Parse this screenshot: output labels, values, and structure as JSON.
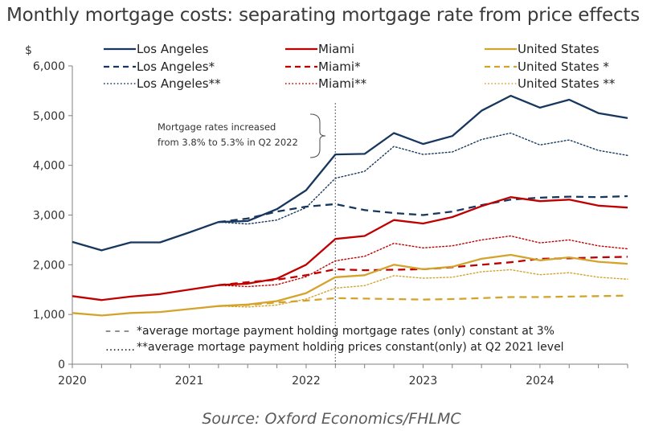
{
  "chart_data": {
    "type": "line",
    "title": "Monthly mortgage costs: separating mortgage rate from price effects",
    "ylabel": "$",
    "ylim": [
      0,
      6000
    ],
    "yticks": [
      "0",
      "1,000",
      "2,000",
      "3,000",
      "4,000",
      "5,000",
      "6,000"
    ],
    "xlim": [
      2020,
      2024.75
    ],
    "xticks": [
      "2020",
      "2021",
      "2022",
      "2023",
      "2024"
    ],
    "x": [
      2020.0,
      2020.25,
      2020.5,
      2020.75,
      2021.0,
      2021.25,
      2021.5,
      2021.75,
      2022.0,
      2022.25,
      2022.5,
      2022.75,
      2023.0,
      2023.25,
      2023.5,
      2023.75,
      2024.0,
      2024.25,
      2024.5,
      2024.75
    ],
    "series": [
      {
        "name": "Los Angeles",
        "color": "#17375e",
        "style": "solid",
        "start": 0,
        "values": [
          2460,
          2290,
          2450,
          2450,
          2650,
          2860,
          2880,
          3120,
          3500,
          4220,
          4230,
          4650,
          4430,
          4590,
          5100,
          5400,
          5160,
          5320,
          5050,
          4950
        ]
      },
      {
        "name": "Los Angeles*",
        "color": "#17375e",
        "style": "dashed",
        "start": 5,
        "values": [
          null,
          null,
          null,
          null,
          null,
          2860,
          2930,
          3070,
          3170,
          3220,
          3100,
          3040,
          3000,
          3070,
          3200,
          3310,
          3350,
          3370,
          3360,
          3380
        ]
      },
      {
        "name": "Los Angeles**",
        "color": "#17375e",
        "style": "dotted",
        "start": 5,
        "values": [
          null,
          null,
          null,
          null,
          null,
          2860,
          2820,
          2900,
          3150,
          3740,
          3880,
          4380,
          4220,
          4270,
          4520,
          4650,
          4410,
          4510,
          4300,
          4200
        ]
      },
      {
        "name": "Miami",
        "color": "#c00000",
        "style": "solid",
        "start": 0,
        "values": [
          1370,
          1290,
          1360,
          1410,
          1500,
          1590,
          1620,
          1720,
          2000,
          2520,
          2580,
          2900,
          2830,
          2960,
          3180,
          3360,
          3280,
          3310,
          3190,
          3150
        ]
      },
      {
        "name": "Miami*",
        "color": "#c00000",
        "style": "dashed",
        "start": 5,
        "values": [
          null,
          null,
          null,
          null,
          null,
          1590,
          1650,
          1700,
          1790,
          1910,
          1890,
          1900,
          1910,
          1950,
          2000,
          2050,
          2120,
          2130,
          2150,
          2160
        ]
      },
      {
        "name": "Miami**",
        "color": "#c00000",
        "style": "dotted",
        "start": 5,
        "values": [
          null,
          null,
          null,
          null,
          null,
          1590,
          1560,
          1600,
          1760,
          2080,
          2170,
          2430,
          2340,
          2380,
          2500,
          2580,
          2440,
          2500,
          2380,
          2320
        ]
      },
      {
        "name": "United States",
        "color": "#d4a32b",
        "style": "solid",
        "start": 0,
        "values": [
          1030,
          980,
          1030,
          1050,
          1110,
          1170,
          1200,
          1270,
          1430,
          1750,
          1790,
          2000,
          1910,
          1960,
          2120,
          2200,
          2090,
          2150,
          2060,
          2020
        ]
      },
      {
        "name": "United States *",
        "color": "#d4a32b",
        "style": "dashed",
        "start": 5,
        "values": [
          null,
          null,
          null,
          null,
          null,
          1170,
          1190,
          1240,
          1280,
          1330,
          1320,
          1310,
          1300,
          1310,
          1330,
          1350,
          1350,
          1360,
          1370,
          1380
        ]
      },
      {
        "name": "United States **",
        "color": "#d4a32b",
        "style": "dotted",
        "start": 5,
        "values": [
          null,
          null,
          null,
          null,
          null,
          1170,
          1150,
          1190,
          1310,
          1530,
          1580,
          1780,
          1730,
          1750,
          1860,
          1900,
          1800,
          1840,
          1750,
          1710
        ]
      }
    ],
    "grid": false,
    "legend_position": "top",
    "annotation": {
      "line1": "Mortgage rates increased",
      "line2": "from 3.8% to 5.3% in Q2 2022",
      "marker_x": 2022.25
    },
    "notes": [
      {
        "symbol": "– – –",
        "text": "*average mortage payment holding mortgage rates (only) constant at 3%"
      },
      {
        "symbol": "……..",
        "text": "**average mortage payment holding prices constant(only) at Q2 2021 level"
      }
    ],
    "source": "Source: Oxford Economics/FHLMC"
  }
}
